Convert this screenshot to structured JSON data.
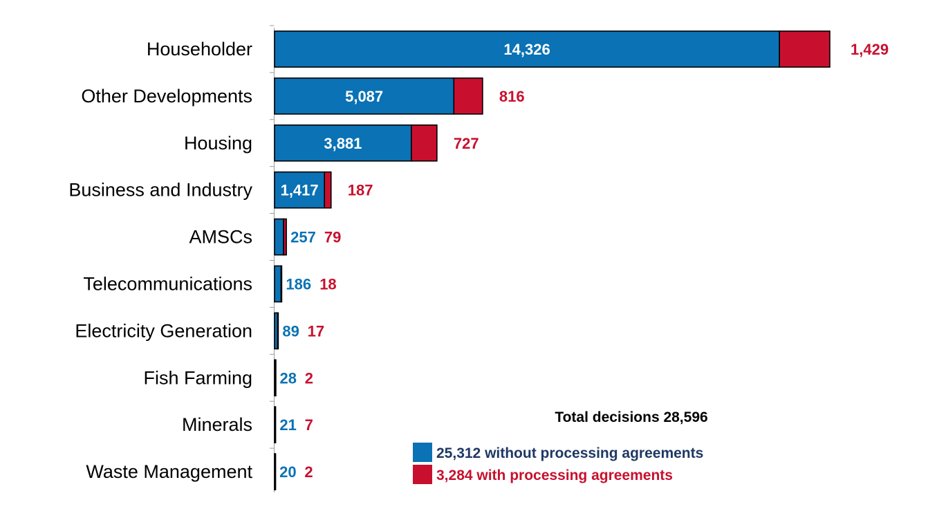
{
  "chart_data": {
    "type": "bar",
    "orientation": "horizontal",
    "stacked": true,
    "title": "",
    "xlabel": "",
    "ylabel": "",
    "categories": [
      "Householder",
      "Other Developments",
      "Housing",
      "Business and Industry",
      "AMSCs",
      "Telecommunications",
      "Electricity Generation",
      "Fish Farming",
      "Minerals",
      "Waste Management"
    ],
    "series": [
      {
        "name": "without processing agreements",
        "color": "#0A72B5",
        "values": [
          14326,
          5087,
          3881,
          1417,
          257,
          186,
          89,
          28,
          21,
          20
        ],
        "labels": [
          "14,326",
          "5,087",
          "3,881",
          "1,417",
          "257",
          "186",
          "89",
          "28",
          "21",
          "20"
        ]
      },
      {
        "name": "with processing agreements",
        "color": "#C8102E",
        "values": [
          1429,
          816,
          727,
          187,
          79,
          18,
          17,
          2,
          7,
          2
        ],
        "labels": [
          "1,429",
          "816",
          "727",
          "187",
          "79",
          "18",
          "17",
          "2",
          "7",
          "2"
        ]
      }
    ],
    "xlim": [
      0,
      15755
    ],
    "grid": false,
    "legend": {
      "position": "bottom-right",
      "title": "Total decisions 28,596",
      "entries": [
        {
          "label": "25,312 without processing agreements",
          "color": "#0A72B5",
          "text_color": "#1F3864"
        },
        {
          "label": "3,284 with processing agreements",
          "color": "#C8102E",
          "text_color": "#C8102E"
        }
      ]
    }
  }
}
